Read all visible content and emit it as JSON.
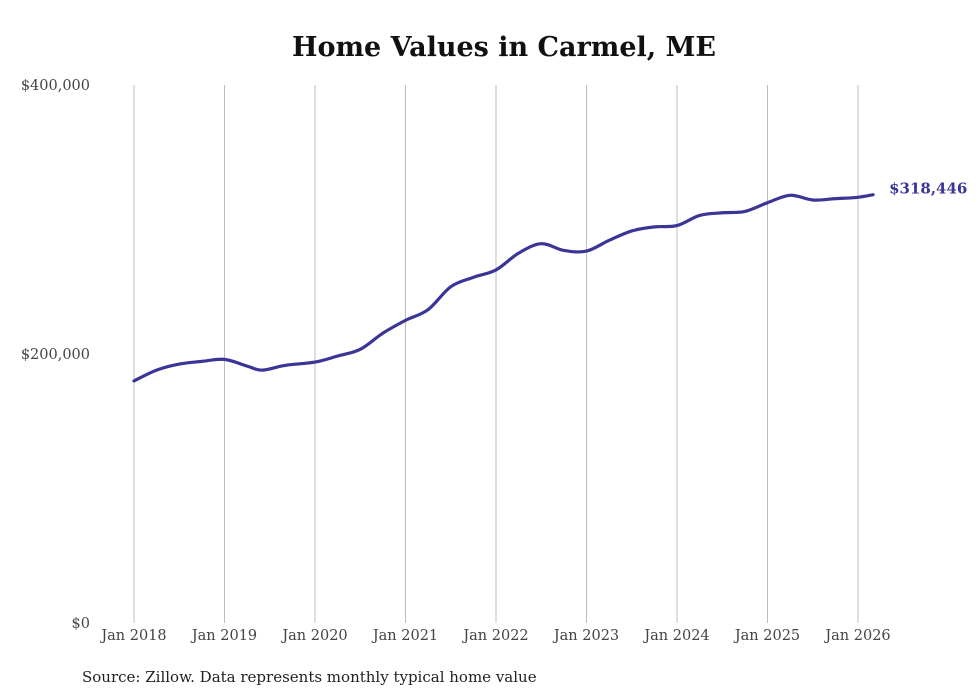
{
  "chart_data": {
    "type": "line",
    "title": "Home Values in Carmel, ME",
    "xlabel": "",
    "ylabel": "",
    "ylim": [
      0,
      400000
    ],
    "yticks": [
      0,
      200000,
      400000
    ],
    "ytick_labels": [
      "$0",
      "$200,000",
      "$400,000"
    ],
    "xticks": [
      "Jan 2018",
      "Jan 2019",
      "Jan 2020",
      "Jan 2021",
      "Jan 2022",
      "Jan 2023",
      "Jan 2024",
      "Jan 2025",
      "Jan 2026"
    ],
    "grid": "vertical",
    "series": [
      {
        "name": "Typical home value",
        "color": "#3a3596",
        "x": [
          "2018-01",
          "2018-04",
          "2018-07",
          "2018-10",
          "2019-01",
          "2019-04",
          "2019-06",
          "2019-09",
          "2020-01",
          "2020-04",
          "2020-07",
          "2020-10",
          "2021-01",
          "2021-04",
          "2021-07",
          "2021-10",
          "2022-01",
          "2022-04",
          "2022-07",
          "2022-10",
          "2023-01",
          "2023-04",
          "2023-07",
          "2023-10",
          "2024-01",
          "2024-04",
          "2024-07",
          "2024-10",
          "2025-01",
          "2025-04",
          "2025-07",
          "2025-10",
          "2026-01",
          "2026-03"
        ],
        "values": [
          180000,
          188000,
          192500,
          194500,
          196000,
          191000,
          188000,
          191500,
          194000,
          198500,
          203500,
          215500,
          225000,
          233000,
          250000,
          257000,
          262500,
          275000,
          282000,
          277000,
          276500,
          284500,
          291500,
          294500,
          295500,
          303000,
          305000,
          306000,
          312500,
          318000,
          314500,
          315500,
          316500,
          318446
        ]
      }
    ],
    "end_label": "$318,446"
  },
  "source": "Source: Zillow. Data represents monthly typical home value"
}
